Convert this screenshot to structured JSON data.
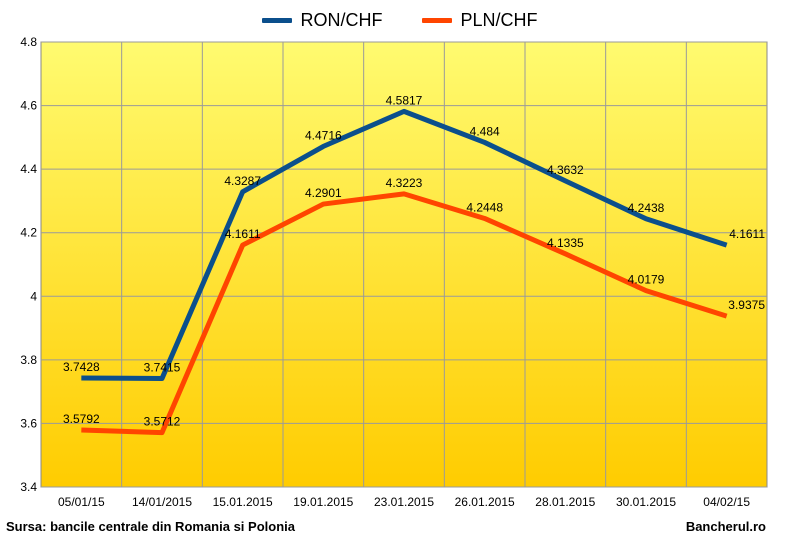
{
  "chart_data": {
    "type": "line",
    "categories": [
      "05/01/15",
      "14/01/2015",
      "15.01.2015",
      "19.01.2015",
      "23.01.2015",
      "26.01.2015",
      "28.01.2015",
      "30.01.2015",
      "04/02/15"
    ],
    "series": [
      {
        "name": "RON/CHF",
        "values": [
          3.7428,
          3.7415,
          4.3287,
          4.4716,
          4.5817,
          4.484,
          4.3632,
          4.2438,
          4.1611
        ],
        "labels": [
          "3.7428",
          "3.7415",
          "4.3287",
          "4.4716",
          "4.5817",
          "4.484",
          "4.3632",
          "4.2438",
          "4.1611"
        ],
        "color": "#0b4f8c"
      },
      {
        "name": "PLN/CHF",
        "values": [
          3.5792,
          3.5712,
          4.1611,
          4.2901,
          4.3223,
          4.2448,
          4.1335,
          4.0179,
          3.9375
        ],
        "labels": [
          "3.5792",
          "3.5712",
          "4.1611",
          "4.2901",
          "4.3223",
          "4.2448",
          "4.1335",
          "4.0179",
          "3.9375"
        ],
        "color": "#ff4500"
      }
    ],
    "ylim": [
      3.4,
      4.8
    ],
    "yticks": [
      3.4,
      3.6,
      3.8,
      4,
      4.2,
      4.4,
      4.6,
      4.8
    ],
    "ytick_labels": [
      "3.4",
      "3.6",
      "3.8",
      "4",
      "4.2",
      "4.4",
      "4.6",
      "4.8"
    ],
    "grid": true,
    "legend_position": "top",
    "background_gradient": [
      "#fffb70",
      "#ffcc00"
    ]
  },
  "footer": {
    "source": "Sursa: bancile centrale din Romania si Polonia",
    "brand": "Bancherul.ro"
  }
}
